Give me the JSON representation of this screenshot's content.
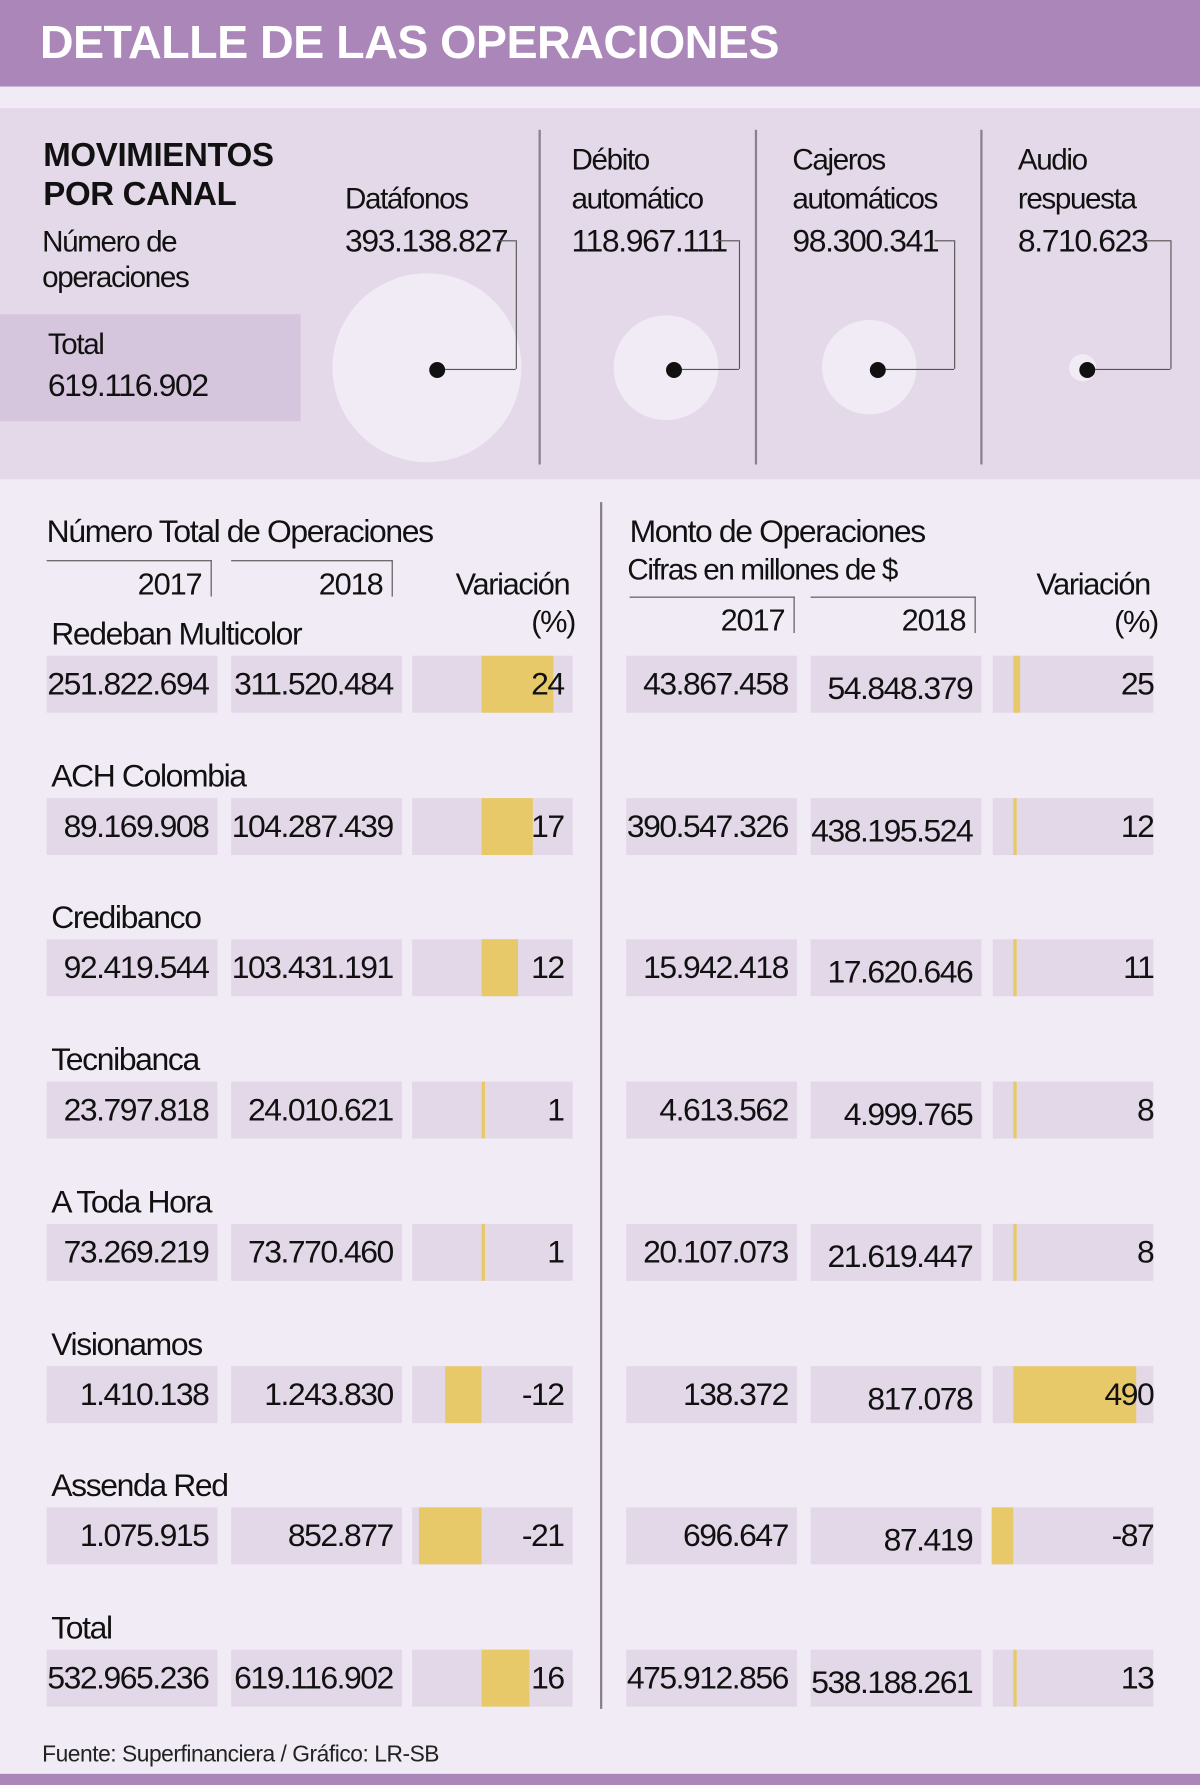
{
  "header": {
    "title": "DETALLE DE LAS OPERACIONES"
  },
  "canal": {
    "title_line1": "MOVIMIENTOS",
    "title_line2": "POR CANAL",
    "subtitle_line1": "Número de",
    "subtitle_line2": "operaciones",
    "total_label": "Total",
    "total_value": "619.116.902",
    "items": [
      {
        "label_line1": "",
        "label_line2": "Datáfonos",
        "value": "393.138.827",
        "amount": 393138827
      },
      {
        "label_line1": "Débito",
        "label_line2": "automático",
        "value": "118.967.111",
        "amount": 118967111
      },
      {
        "label_line1": "Cajeros",
        "label_line2": "automáticos",
        "value": "98.300.341",
        "amount": 98300341
      },
      {
        "label_line1": "Audio",
        "label_line2": "respuesta",
        "value": "8.710.623",
        "amount": 8710623
      }
    ]
  },
  "left_table": {
    "title": "Número Total de Operaciones",
    "col_2017": "2017",
    "col_2018": "2018",
    "col_var_line1": "Variación",
    "col_var_line2": "(%)"
  },
  "right_table": {
    "title": "Monto de Operaciones",
    "subtitle": "Cifras en millones de $",
    "col_2017": "2017",
    "col_2018": "2018",
    "col_var_line1": "Variación",
    "col_var_line2": "(%)"
  },
  "colors": {
    "header": "#ab86b8",
    "bar": "#e8c96a",
    "cell": "#e2d8e8",
    "panel": "#e4d9e9"
  },
  "chart_data": {
    "type": "table",
    "categories": [
      "Redeban Multicolor",
      "ACH Colombia",
      "Credibanco",
      "Tecnibanca",
      "A Toda Hora",
      "Visionamos",
      "Assenda Red",
      "Total"
    ],
    "rows": [
      {
        "name": "Redeban Multicolor",
        "ops_2017": "251.822.694",
        "ops_2018": "311.520.484",
        "ops_var": 24,
        "monto_2017": "43.867.458",
        "monto_2018": "54.848.379",
        "monto_var": 25
      },
      {
        "name": "ACH Colombia",
        "ops_2017": "89.169.908",
        "ops_2018": "104.287.439",
        "ops_var": 17,
        "monto_2017": "390.547.326",
        "monto_2018": "438.195.524",
        "monto_var": 12
      },
      {
        "name": "Credibanco",
        "ops_2017": "92.419.544",
        "ops_2018": "103.431.191",
        "ops_var": 12,
        "monto_2017": "15.942.418",
        "monto_2018": "17.620.646",
        "monto_var": 11
      },
      {
        "name": "Tecnibanca",
        "ops_2017": "23.797.818",
        "ops_2018": "24.010.621",
        "ops_var": 1,
        "monto_2017": "4.613.562",
        "monto_2018": "4.999.765",
        "monto_var": 8
      },
      {
        "name": "A Toda Hora",
        "ops_2017": "73.269.219",
        "ops_2018": "73.770.460",
        "ops_var": 1,
        "monto_2017": "20.107.073",
        "monto_2018": "21.619.447",
        "monto_var": 8
      },
      {
        "name": "Visionamos",
        "ops_2017": "1.410.138",
        "ops_2018": "1.243.830",
        "ops_var": -12,
        "monto_2017": "138.372",
        "monto_2018": "817.078",
        "monto_var": 490
      },
      {
        "name": "Assenda Red",
        "ops_2017": "1.075.915",
        "ops_2018": "852.877",
        "ops_var": -21,
        "monto_2017": "696.647",
        "monto_2018": "87.419",
        "monto_var": -87
      },
      {
        "name": "Total",
        "ops_2017": "532.965.236",
        "ops_2018": "619.116.902",
        "ops_var": 16,
        "monto_2017": "475.912.856",
        "monto_2018": "538.188.261",
        "monto_var": 13
      }
    ]
  },
  "footer": {
    "source": "Fuente: Superfinanciera / Gráfico: LR-SB"
  }
}
